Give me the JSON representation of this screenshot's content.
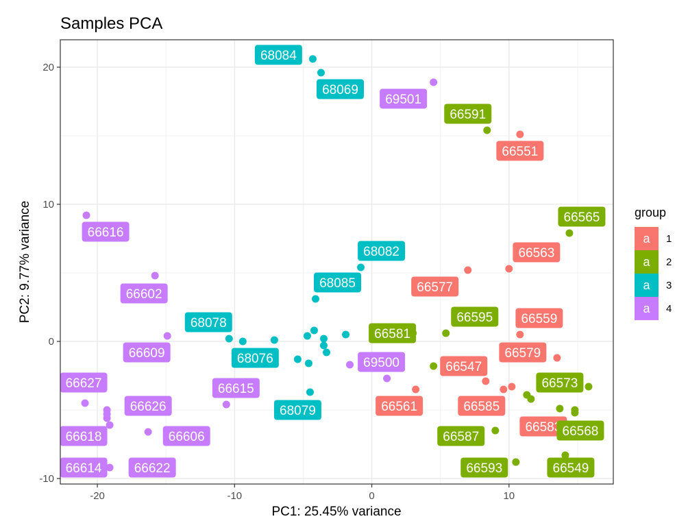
{
  "chart_data": {
    "type": "scatter",
    "title": "Samples PCA",
    "xlabel": "PC1: 25.45% variance",
    "ylabel": "PC2: 9.77% variance",
    "xlim": [
      -22.7,
      17.6
    ],
    "ylim": [
      -10.4,
      22.0
    ],
    "xticks": [
      -20,
      -10,
      0,
      10
    ],
    "yticks": [
      -10,
      0,
      10,
      20
    ],
    "grid": true,
    "legend": {
      "title": "group",
      "position": "right",
      "key_glyph": "a",
      "entries": [
        {
          "label": "1",
          "color": "#F8766D"
        },
        {
          "label": "2",
          "color": "#7CAE00"
        },
        {
          "label": "3",
          "color": "#00BFC4"
        },
        {
          "label": "4",
          "color": "#C77CFF"
        }
      ]
    },
    "points": [
      {
        "x": 10.8,
        "y": 15.1,
        "group": "1",
        "label": "66551",
        "lx": 10.8,
        "ly": 13.9
      },
      {
        "x": 10.0,
        "y": 5.3,
        "group": "1",
        "label": "66563",
        "lx": 12.0,
        "ly": 6.5
      },
      {
        "x": 7.0,
        "y": 5.2,
        "group": "1",
        "label": "66577",
        "lx": 4.6,
        "ly": 4.0
      },
      {
        "x": 10.8,
        "y": 0.5,
        "group": "1",
        "label": "66559",
        "lx": 12.2,
        "ly": 1.7
      },
      {
        "x": 13.5,
        "y": -1.2,
        "group": "1",
        "label": "66579",
        "lx": 11.0,
        "ly": -0.8
      },
      {
        "x": 5.5,
        "y": -1.8,
        "group": "1",
        "label": "66547",
        "lx": 6.7,
        "ly": -1.8
      },
      {
        "x": 3.2,
        "y": -3.5,
        "group": "1",
        "label": "66561",
        "lx": 2.0,
        "ly": -4.7
      },
      {
        "x": 8.3,
        "y": -2.9,
        "group": "1",
        "label": "66585",
        "lx": 8.0,
        "ly": -4.7
      },
      {
        "x": 9.6,
        "y": -3.5,
        "group": "1",
        "label": "66583",
        "lx": 12.5,
        "ly": -6.2
      },
      {
        "x": 10.2,
        "y": -3.3,
        "group": "1",
        "label": "",
        "lx": 10.2,
        "ly": -3.3
      },
      {
        "x": 8.4,
        "y": 15.4,
        "group": "2",
        "label": "66591",
        "lx": 7.0,
        "ly": 16.6
      },
      {
        "x": 14.4,
        "y": 7.9,
        "group": "2",
        "label": "66565",
        "lx": 15.3,
        "ly": 9.1
      },
      {
        "x": 5.4,
        "y": 0.6,
        "group": "2",
        "label": "66595",
        "lx": 7.5,
        "ly": 1.8
      },
      {
        "x": 3.0,
        "y": 0.6,
        "group": "2",
        "label": "66581",
        "lx": 1.5,
        "ly": 0.6
      },
      {
        "x": 4.5,
        "y": -1.8,
        "group": "2",
        "label": "",
        "lx": 4.5,
        "ly": -1.8
      },
      {
        "x": 15.8,
        "y": -3.3,
        "group": "2",
        "label": "66573",
        "lx": 13.7,
        "ly": -3.0
      },
      {
        "x": 11.3,
        "y": -3.9,
        "group": "2",
        "label": "",
        "lx": 11.3,
        "ly": -3.9
      },
      {
        "x": 11.6,
        "y": -4.2,
        "group": "2",
        "label": "",
        "lx": 11.6,
        "ly": -4.2
      },
      {
        "x": 13.7,
        "y": -4.9,
        "group": "2",
        "label": "66568",
        "lx": 15.2,
        "ly": -6.5
      },
      {
        "x": 14.8,
        "y": -5.0,
        "group": "2",
        "label": "",
        "lx": 14.8,
        "ly": -5.0
      },
      {
        "x": 14.8,
        "y": -5.2,
        "group": "2",
        "label": "",
        "lx": 14.8,
        "ly": -5.2
      },
      {
        "x": 9.0,
        "y": -6.5,
        "group": "2",
        "label": "66587",
        "lx": 6.5,
        "ly": -6.9
      },
      {
        "x": 10.5,
        "y": -8.8,
        "group": "2",
        "label": "66593",
        "lx": 8.2,
        "ly": -9.2
      },
      {
        "x": 14.1,
        "y": -8.3,
        "group": "2",
        "label": "66549",
        "lx": 14.5,
        "ly": -9.2
      },
      {
        "x": -4.3,
        "y": 20.6,
        "group": "3",
        "label": "68084",
        "lx": -6.8,
        "ly": 20.9
      },
      {
        "x": -3.7,
        "y": 19.6,
        "group": "3",
        "label": "68069",
        "lx": -2.3,
        "ly": 18.4
      },
      {
        "x": -0.8,
        "y": 5.4,
        "group": "3",
        "label": "68082",
        "lx": 0.7,
        "ly": 6.6
      },
      {
        "x": -4.1,
        "y": 3.1,
        "group": "3",
        "label": "68085",
        "lx": -2.5,
        "ly": 4.3
      },
      {
        "x": -10.4,
        "y": 0.2,
        "group": "3",
        "label": "68078",
        "lx": -11.9,
        "ly": 1.4
      },
      {
        "x": -9.4,
        "y": 0.0,
        "group": "3",
        "label": "68076",
        "lx": -8.5,
        "ly": -1.2
      },
      {
        "x": -7.1,
        "y": 0.1,
        "group": "3",
        "label": "",
        "lx": -7.1,
        "ly": 0.1
      },
      {
        "x": -4.7,
        "y": 0.4,
        "group": "3",
        "label": "",
        "lx": -4.7,
        "ly": 0.4
      },
      {
        "x": -4.2,
        "y": 0.8,
        "group": "3",
        "label": "",
        "lx": -4.2,
        "ly": 0.8
      },
      {
        "x": -3.5,
        "y": 0.2,
        "group": "3",
        "label": "",
        "lx": -3.5,
        "ly": 0.2
      },
      {
        "x": -3.5,
        "y": -0.3,
        "group": "3",
        "label": "",
        "lx": -3.5,
        "ly": -0.3
      },
      {
        "x": -3.3,
        "y": -0.8,
        "group": "3",
        "label": "",
        "lx": -3.3,
        "ly": -0.8
      },
      {
        "x": -1.9,
        "y": 0.5,
        "group": "3",
        "label": "",
        "lx": -1.9,
        "ly": 0.5
      },
      {
        "x": -5.4,
        "y": -1.3,
        "group": "3",
        "label": "",
        "lx": -5.4,
        "ly": -1.3
      },
      {
        "x": -4.6,
        "y": -1.6,
        "group": "3",
        "label": "",
        "lx": -4.6,
        "ly": -1.6
      },
      {
        "x": -4.5,
        "y": -3.7,
        "group": "3",
        "label": "68079",
        "lx": -5.4,
        "ly": -5.0
      },
      {
        "x": -20.8,
        "y": 9.2,
        "group": "4",
        "label": "66616",
        "lx": -19.4,
        "ly": 8.0
      },
      {
        "x": -15.8,
        "y": 4.8,
        "group": "4",
        "label": "66602",
        "lx": -16.6,
        "ly": 3.5
      },
      {
        "x": -14.9,
        "y": 0.4,
        "group": "4",
        "label": "66609",
        "lx": -16.4,
        "ly": -0.8
      },
      {
        "x": 4.5,
        "y": 18.9,
        "group": "4",
        "label": "69501",
        "lx": 2.3,
        "ly": 17.7
      },
      {
        "x": -1.6,
        "y": -1.7,
        "group": "4",
        "label": "69500",
        "lx": 0.7,
        "ly": -1.5
      },
      {
        "x": 1.1,
        "y": -2.7,
        "group": "4",
        "label": "",
        "lx": 1.1,
        "ly": -2.7
      },
      {
        "x": -20.9,
        "y": -4.5,
        "group": "4",
        "label": "66627",
        "lx": -21.0,
        "ly": -3.0
      },
      {
        "x": -10.6,
        "y": -4.6,
        "group": "4",
        "label": "66615",
        "lx": -9.9,
        "ly": -3.4
      },
      {
        "x": -19.3,
        "y": -5.0,
        "group": "4",
        "label": "66626",
        "lx": -16.3,
        "ly": -4.7
      },
      {
        "x": -19.3,
        "y": -5.3,
        "group": "4",
        "label": "",
        "lx": -19.3,
        "ly": -5.3
      },
      {
        "x": -19.3,
        "y": -5.6,
        "group": "4",
        "label": "",
        "lx": -19.3,
        "ly": -5.6
      },
      {
        "x": -19.1,
        "y": -6.1,
        "group": "4",
        "label": "66618",
        "lx": -21.0,
        "ly": -6.9
      },
      {
        "x": -16.3,
        "y": -6.6,
        "group": "4",
        "label": "66606",
        "lx": -13.5,
        "ly": -6.9
      },
      {
        "x": -19.1,
        "y": -9.2,
        "group": "4",
        "label": "66614",
        "lx": -21.0,
        "ly": -9.2
      },
      {
        "x": -16.3,
        "y": -9.2,
        "group": "4",
        "label": "66622",
        "lx": -16.0,
        "ly": -9.2
      }
    ]
  }
}
